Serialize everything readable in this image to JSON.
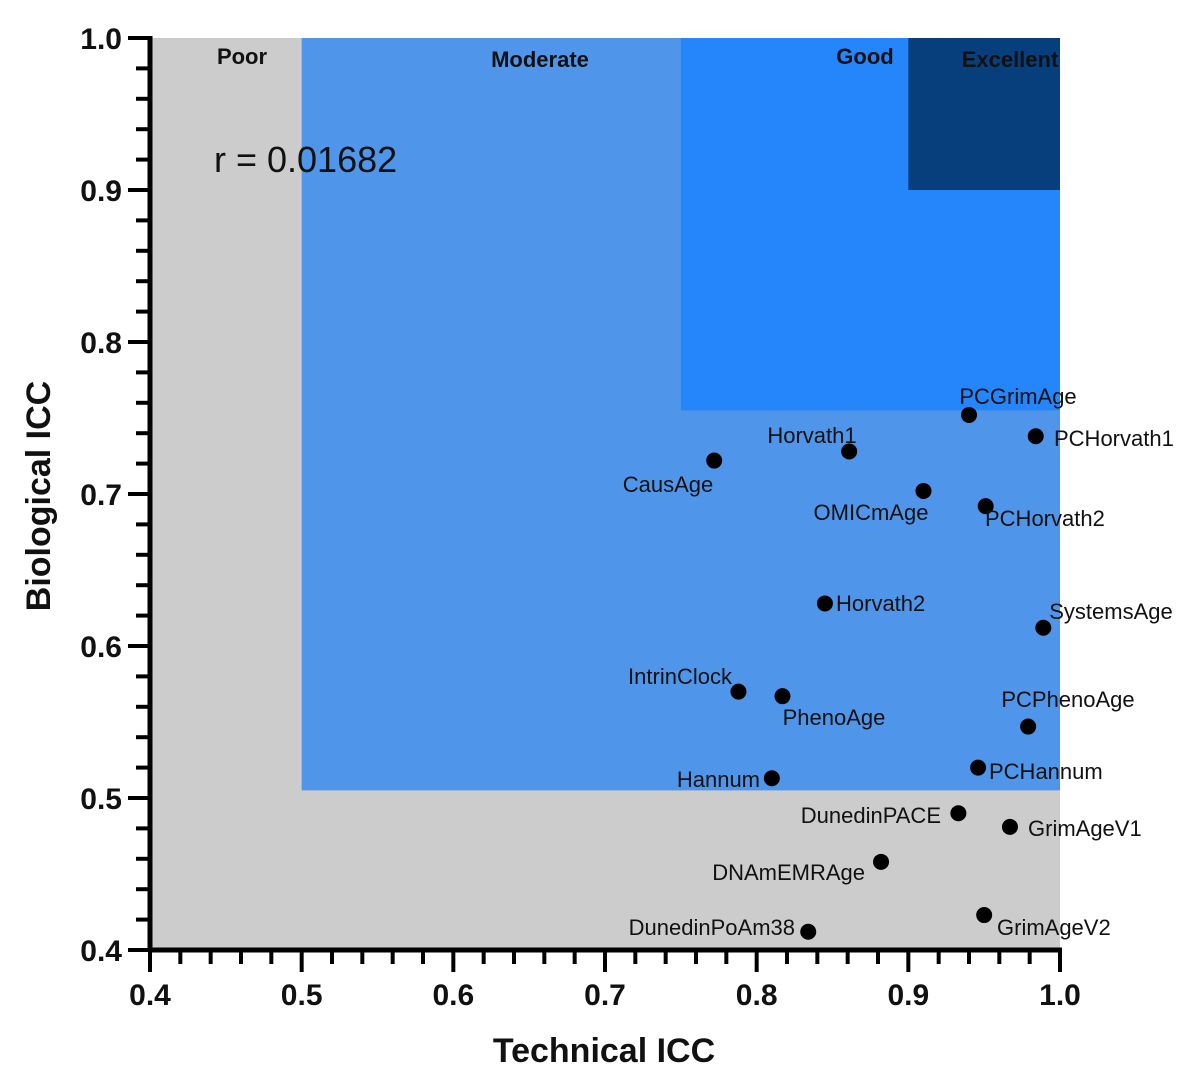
{
  "chart_data": {
    "type": "scatter",
    "xlabel": "Technical ICC",
    "ylabel": "Biological ICC",
    "xlim": [
      0.4,
      1.0
    ],
    "ylim": [
      0.4,
      1.0
    ],
    "x_ticks": [
      "0.4",
      "0.5",
      "0.6",
      "0.7",
      "0.8",
      "0.9",
      "1.0"
    ],
    "y_ticks": [
      "0.4",
      "0.5",
      "0.6",
      "0.7",
      "0.8",
      "0.9",
      "1.0"
    ],
    "annotation": "r = 0.01682",
    "zones": [
      {
        "label": "Poor",
        "x_range": [
          0.4,
          1.0
        ],
        "y_range": [
          0.4,
          1.0
        ],
        "color": "#cccccc",
        "label_color": "#111111"
      },
      {
        "label": "Moderate",
        "x_range": [
          0.5,
          1.0
        ],
        "y_range": [
          0.505,
          1.0
        ],
        "color": "#4f96ea",
        "label_color": "#111111"
      },
      {
        "label": "Good",
        "x_range": [
          0.75,
          1.0
        ],
        "y_range": [
          0.755,
          1.0
        ],
        "color": "#2585fa",
        "label_color": "#111111"
      },
      {
        "label": "Excellent",
        "x_range": [
          0.9,
          1.0
        ],
        "y_range": [
          0.9,
          1.0
        ],
        "color": "#073e7c",
        "label_color": "#ffffff"
      }
    ],
    "points": [
      {
        "name": "PCGrimAge",
        "x": 0.94,
        "y": 0.752
      },
      {
        "name": "PCHorvath1",
        "x": 0.984,
        "y": 0.738
      },
      {
        "name": "Horvath1",
        "x": 0.861,
        "y": 0.728
      },
      {
        "name": "CausAge",
        "x": 0.772,
        "y": 0.722
      },
      {
        "name": "OMICmAge",
        "x": 0.91,
        "y": 0.702
      },
      {
        "name": "PCHorvath2",
        "x": 0.951,
        "y": 0.692
      },
      {
        "name": "Horvath2",
        "x": 0.845,
        "y": 0.628
      },
      {
        "name": "SystemsAge",
        "x": 0.989,
        "y": 0.612
      },
      {
        "name": "IntrinClock",
        "x": 0.788,
        "y": 0.57
      },
      {
        "name": "PhenoAge",
        "x": 0.817,
        "y": 0.567
      },
      {
        "name": "PCPhenoAge",
        "x": 0.979,
        "y": 0.547
      },
      {
        "name": "PCHannum",
        "x": 0.946,
        "y": 0.52
      },
      {
        "name": "Hannum",
        "x": 0.81,
        "y": 0.513
      },
      {
        "name": "DunedinPACE",
        "x": 0.933,
        "y": 0.49
      },
      {
        "name": "GrimAgeV1",
        "x": 0.967,
        "y": 0.481
      },
      {
        "name": "DNAmEMRAge",
        "x": 0.882,
        "y": 0.458
      },
      {
        "name": "GrimAgeV2",
        "x": 0.95,
        "y": 0.423
      },
      {
        "name": "DunedinPoAm38",
        "x": 0.834,
        "y": 0.412
      }
    ]
  }
}
